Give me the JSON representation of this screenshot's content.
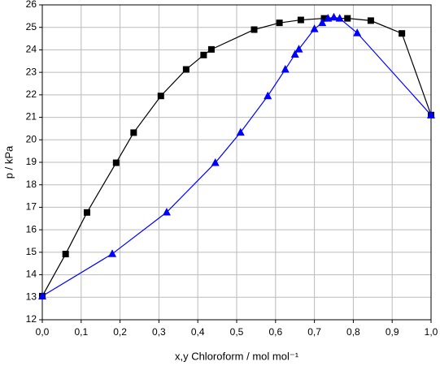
{
  "chart_data": {
    "type": "line",
    "x_label": "x,y Chloroform / mol mol⁻¹",
    "y_label": "p / kPa",
    "xlim": [
      0,
      1
    ],
    "ylim": [
      12,
      26
    ],
    "xticks": [
      {
        "value": 0,
        "label": "0,0"
      },
      {
        "value": 0.1,
        "label": "0,1"
      },
      {
        "value": 0.2,
        "label": "0,2"
      },
      {
        "value": 0.3,
        "label": "0,3"
      },
      {
        "value": 0.4,
        "label": "0,4"
      },
      {
        "value": 0.5,
        "label": "0,5"
      },
      {
        "value": 0.6,
        "label": "0,6"
      },
      {
        "value": 0.7,
        "label": "0,7"
      },
      {
        "value": 0.8,
        "label": "0,8"
      },
      {
        "value": 0.9,
        "label": "0,9"
      },
      {
        "value": 1,
        "label": "1,0"
      }
    ],
    "yticks": [
      12,
      13,
      14,
      15,
      16,
      17,
      18,
      19,
      20,
      21,
      22,
      23,
      24,
      25,
      26
    ],
    "grid": true,
    "series": [
      {
        "color": "#000000",
        "marker": "square",
        "x": [
          0,
          0.06,
          0.115,
          0.19,
          0.235,
          0.305,
          0.37,
          0.415,
          0.435,
          0.545,
          0.61,
          0.665,
          0.725,
          0.785,
          0.845,
          0.925,
          1.0
        ],
        "values": [
          13.05,
          14.92,
          16.77,
          18.98,
          20.32,
          21.95,
          23.13,
          23.77,
          24.02,
          24.9,
          25.2,
          25.33,
          25.4,
          25.4,
          25.3,
          24.73,
          21.1
        ]
      },
      {
        "color": "#0000ff",
        "marker": "triangle",
        "x": [
          0,
          0.18,
          0.32,
          0.445,
          0.51,
          0.58,
          0.625,
          0.65,
          0.66,
          0.7,
          0.72,
          0.735,
          0.75,
          0.765,
          0.81,
          1.0
        ],
        "values": [
          13.05,
          14.93,
          16.78,
          18.98,
          20.33,
          21.95,
          23.13,
          23.8,
          24.03,
          24.93,
          25.2,
          25.4,
          25.45,
          25.4,
          24.75,
          21.1
        ]
      }
    ]
  }
}
